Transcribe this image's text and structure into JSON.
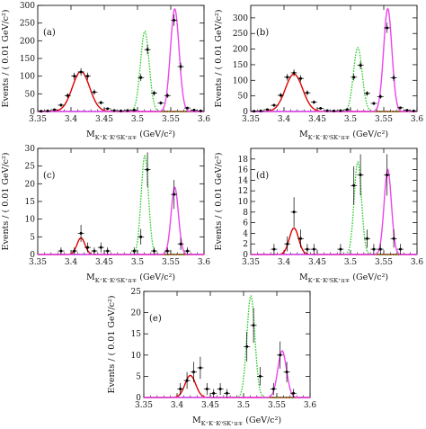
{
  "chart_data": [
    {
      "type": "scatter",
      "panel_label": "(a)",
      "xlabel": "M_{K⁺K⁻K⁰_S K⁺π∓} (GeV/c²)",
      "xlabel_main": "M",
      "xlabel_sub": "K⁺K⁻K⁰SK⁺π∓",
      "xlabel_unit": " (GeV/c²)",
      "ylabel": "Events / ( 0.01 GeV/c²)",
      "xlim": [
        3.35,
        3.6
      ],
      "ylim": [
        0,
        300
      ],
      "xticks": [
        3.35,
        3.4,
        3.45,
        3.5,
        3.55,
        3.6
      ],
      "yticks": [
        0,
        50,
        100,
        150,
        200,
        250,
        300
      ],
      "points": {
        "x": [
          3.355,
          3.365,
          3.375,
          3.385,
          3.395,
          3.405,
          3.415,
          3.425,
          3.435,
          3.445,
          3.455,
          3.465,
          3.475,
          3.485,
          3.495,
          3.505,
          3.515,
          3.525,
          3.535,
          3.545,
          3.555,
          3.565,
          3.575,
          3.585,
          3.595
        ],
        "y": [
          1,
          2,
          5,
          18,
          45,
          100,
          112,
          100,
          55,
          25,
          8,
          3,
          2,
          3,
          4,
          96,
          175,
          52,
          24,
          45,
          258,
          127,
          10,
          4,
          2
        ],
        "yerr": [
          1,
          1.4,
          2.2,
          4.2,
          6.7,
          10,
          10.6,
          10,
          7.4,
          5,
          2.8,
          1.7,
          1.4,
          1.7,
          2,
          9.8,
          13.2,
          7.2,
          4.9,
          6.7,
          16.1,
          11.3,
          3.2,
          2,
          1.4
        ]
      },
      "curves": [
        {
          "color": "#dd0000",
          "style": "solid",
          "peak": 113,
          "mean": 3.415,
          "sigma": 0.013
        },
        {
          "color": "#22cc22",
          "style": "dotted",
          "peak": 227,
          "mean": 3.511,
          "sigma": 0.0065
        },
        {
          "color": "#ee44ee",
          "style": "solid",
          "peak": 290,
          "mean": 3.556,
          "sigma": 0.0065
        }
      ]
    },
    {
      "type": "scatter",
      "panel_label": "(b)",
      "xlabel": "M_{K⁺K⁻K⁰_S K⁺π∓} (GeV/c²)",
      "xlabel_main": "M",
      "xlabel_sub": "K⁺K⁻K⁰SK⁺π∓",
      "xlabel_unit": " (GeV/c²)",
      "ylabel": "Events / ( 0.01 GeV/c²)",
      "xlim": [
        3.35,
        3.6
      ],
      "ylim": [
        0,
        340
      ],
      "xticks": [
        3.35,
        3.4,
        3.45,
        3.5,
        3.55,
        3.6
      ],
      "yticks": [
        0,
        50,
        100,
        150,
        200,
        250,
        300
      ],
      "points": {
        "x": [
          3.355,
          3.365,
          3.375,
          3.385,
          3.395,
          3.405,
          3.415,
          3.425,
          3.435,
          3.445,
          3.455,
          3.465,
          3.475,
          3.485,
          3.495,
          3.505,
          3.515,
          3.525,
          3.535,
          3.545,
          3.555,
          3.565,
          3.575,
          3.585,
          3.595
        ],
        "y": [
          1,
          2,
          6,
          20,
          52,
          110,
          124,
          106,
          60,
          30,
          10,
          3,
          2,
          3,
          6,
          110,
          148,
          58,
          26,
          48,
          268,
          108,
          12,
          4,
          2
        ],
        "yerr": [
          1,
          1.4,
          2.4,
          4.5,
          7.2,
          10.5,
          11.1,
          10.3,
          7.7,
          5.5,
          3.2,
          1.7,
          1.4,
          1.7,
          2.4,
          10.5,
          12.2,
          7.6,
          5.1,
          6.9,
          16.4,
          10.4,
          3.5,
          2,
          1.4
        ]
      },
      "curves": [
        {
          "color": "#dd0000",
          "style": "solid",
          "peak": 120,
          "mean": 3.415,
          "sigma": 0.013
        },
        {
          "color": "#22cc22",
          "style": "dotted",
          "peak": 205,
          "mean": 3.511,
          "sigma": 0.0065
        },
        {
          "color": "#ee44ee",
          "style": "solid",
          "peak": 330,
          "mean": 3.556,
          "sigma": 0.0062
        }
      ]
    },
    {
      "type": "scatter",
      "panel_label": "(c)",
      "xlabel": "M_{K⁺K⁻K⁰_S K⁺π∓} (GeV/c²)",
      "xlabel_main": "M",
      "xlabel_sub": "K⁺K⁻K⁰SK⁺π∓",
      "xlabel_unit": " (GeV/c²)",
      "ylabel": "Events / ( 0.01 GeV/c²)",
      "xlim": [
        3.35,
        3.6
      ],
      "ylim": [
        0,
        30
      ],
      "xticks": [
        3.35,
        3.4,
        3.45,
        3.5,
        3.55,
        3.6
      ],
      "yticks": [
        0,
        5,
        10,
        15,
        20,
        25,
        30
      ],
      "points": {
        "x": [
          3.385,
          3.405,
          3.415,
          3.425,
          3.435,
          3.445,
          3.455,
          3.495,
          3.505,
          3.515,
          3.525,
          3.545,
          3.555,
          3.565,
          3.575
        ],
        "y": [
          1,
          1,
          6,
          2,
          1,
          2,
          1,
          1,
          5,
          24,
          1,
          1,
          17,
          3,
          1
        ],
        "yerr": [
          1,
          1,
          2.4,
          1.4,
          1,
          1.4,
          1,
          1,
          2.2,
          4.9,
          1,
          1,
          4.1,
          1.7,
          1
        ]
      },
      "curves": [
        {
          "color": "#dd0000",
          "style": "solid",
          "peak": 4.7,
          "mean": 3.415,
          "sigma": 0.006
        },
        {
          "color": "#22cc22",
          "style": "dotted",
          "peak": 28,
          "mean": 3.511,
          "sigma": 0.0055
        },
        {
          "color": "#ee44ee",
          "style": "solid",
          "peak": 19,
          "mean": 3.556,
          "sigma": 0.0055
        }
      ]
    },
    {
      "type": "scatter",
      "panel_label": "(d)",
      "xlabel": "M_{K⁺K⁻K⁰_S K⁺π∓} (GeV/c²)",
      "xlabel_main": "M",
      "xlabel_sub": "K⁺K⁻K⁰SK⁺π∓",
      "xlabel_unit": " (GeV/c²)",
      "ylabel": "Events / ( 0.01 GeV/c²)",
      "xlim": [
        3.35,
        3.6
      ],
      "ylim": [
        0,
        20
      ],
      "xticks": [
        3.35,
        3.4,
        3.45,
        3.5,
        3.55,
        3.6
      ],
      "yticks": [
        0,
        2,
        4,
        6,
        8,
        10,
        12,
        14,
        16,
        18
      ],
      "points": {
        "x": [
          3.385,
          3.405,
          3.415,
          3.425,
          3.435,
          3.445,
          3.485,
          3.505,
          3.515,
          3.525,
          3.535,
          3.545,
          3.555,
          3.565,
          3.575
        ],
        "y": [
          1,
          2,
          8,
          3,
          1,
          1,
          1,
          13,
          15,
          3,
          1,
          1,
          15,
          3,
          1
        ],
        "yerr": [
          1,
          1.4,
          2.8,
          1.7,
          1,
          1,
          1,
          3.6,
          3.9,
          1.7,
          1,
          1,
          3.9,
          1.7,
          1
        ]
      },
      "curves": [
        {
          "color": "#dd0000",
          "style": "solid",
          "peak": 5,
          "mean": 3.415,
          "sigma": 0.007
        },
        {
          "color": "#22cc22",
          "style": "dotted",
          "peak": 17.5,
          "mean": 3.511,
          "sigma": 0.0055
        },
        {
          "color": "#ee44ee",
          "style": "solid",
          "peak": 16,
          "mean": 3.556,
          "sigma": 0.0055
        }
      ]
    },
    {
      "type": "scatter",
      "panel_label": "(e)",
      "xlabel": "M_{K⁺K⁻K⁰_S K⁺π∓} (GeV/c²)",
      "xlabel_main": "M",
      "xlabel_sub": "K⁺K⁻K⁰SK⁺π∓",
      "xlabel_unit": " (GeV/c²)",
      "ylabel": "Events / ( 0.01 GeV/c²)",
      "xlim": [
        3.35,
        3.6
      ],
      "ylim": [
        0,
        25
      ],
      "xticks": [
        3.35,
        3.4,
        3.45,
        3.5,
        3.55,
        3.6
      ],
      "yticks": [
        0,
        5,
        10,
        15,
        20,
        25
      ],
      "points": {
        "x": [
          3.405,
          3.415,
          3.425,
          3.435,
          3.445,
          3.455,
          3.465,
          3.475,
          3.505,
          3.515,
          3.525,
          3.545,
          3.555,
          3.565,
          3.575
        ],
        "y": [
          2,
          4,
          6,
          7,
          2,
          1,
          2,
          1,
          12,
          17,
          5,
          2,
          10,
          6,
          1
        ],
        "yerr": [
          1.4,
          2,
          2.4,
          2.6,
          1.4,
          1,
          1.4,
          1,
          3.5,
          4.1,
          2.2,
          1.4,
          3.2,
          2.4,
          1
        ]
      },
      "curves": [
        {
          "color": "#dd0000",
          "style": "solid",
          "peak": 5.2,
          "mean": 3.42,
          "sigma": 0.008
        },
        {
          "color": "#22cc22",
          "style": "dotted",
          "peak": 24,
          "mean": 3.511,
          "sigma": 0.006
        },
        {
          "color": "#ee44ee",
          "style": "solid",
          "peak": 11,
          "mean": 3.558,
          "sigma": 0.0065
        }
      ]
    }
  ],
  "colors": {
    "axis": "#111111",
    "points": "#000000",
    "baseline": "#1a1aff"
  }
}
